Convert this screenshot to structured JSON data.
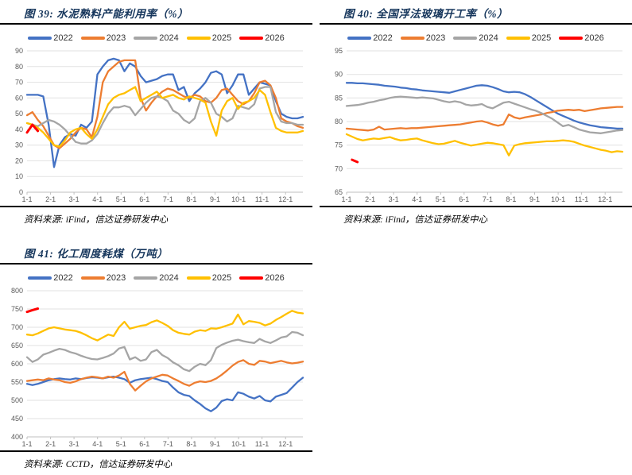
{
  "colors": {
    "title_text": "#16365C",
    "rule": "#000000",
    "grid": "#E2E2E2",
    "axis": "#BFBFBF",
    "axis_text": "#595959",
    "series_2022": "#4472C4",
    "series_2023": "#ED7D31",
    "series_2024": "#A5A5A5",
    "series_2025": "#FFC000",
    "series_2026": "#FF0000"
  },
  "figures": [
    {
      "title": "图 39: 水泥熟料产能利用率（%）",
      "source": "资料来源: iFind，信达证券研发中心"
    },
    {
      "title": "图 40: 全国浮法玻璃开工率（%）",
      "source": "资料来源: iFind，信达证券研发中心"
    },
    {
      "title": "图 41: 化工周度耗煤（万吨）",
      "source": "资料来源: CCTD，信达证券研发中心"
    }
  ],
  "chart_data": [
    {
      "type": "line",
      "title": "水泥熟料产能利用率（%）",
      "x_tick_labels": [
        "1-1",
        "2-1",
        "3-1",
        "4-1",
        "5-1",
        "6-1",
        "7-1",
        "8-1",
        "9-1",
        "10-1",
        "11-1",
        "12-1"
      ],
      "x_unit": "week of year (month-day)",
      "ylim": [
        0,
        90
      ],
      "ytick_step": 10,
      "grid": true,
      "legend_position": "top",
      "series": [
        {
          "name": "2022",
          "color": "#4472C4",
          "values": [
            62,
            62,
            62,
            61,
            43,
            16,
            30,
            35,
            37,
            36,
            43,
            41,
            45,
            75,
            80,
            84,
            85,
            84,
            77,
            82,
            80,
            74,
            70,
            71,
            72,
            74,
            75,
            75,
            65,
            67,
            58,
            63,
            66,
            70,
            76,
            77,
            75,
            63,
            68,
            75,
            75,
            62,
            66,
            70,
            69,
            68,
            58,
            50,
            48,
            47,
            47,
            48
          ]
        },
        {
          "name": "2023",
          "color": "#ED7D31",
          "values": [
            49,
            51,
            46,
            42,
            36,
            30,
            28,
            31,
            34,
            38,
            41,
            40,
            35,
            48,
            70,
            77,
            80,
            83,
            84,
            84,
            84,
            60,
            52,
            57,
            61,
            64,
            66,
            65,
            63,
            61,
            60,
            62,
            61,
            58,
            57,
            60,
            65,
            66,
            62,
            58,
            56,
            58,
            63,
            70,
            71,
            68,
            60,
            47,
            45,
            44,
            42,
            41
          ]
        },
        {
          "name": "2024",
          "color": "#A5A5A5",
          "values": [
            44,
            43,
            42,
            44,
            46,
            45,
            43,
            40,
            36,
            32,
            31,
            31,
            33,
            37,
            44,
            50,
            54,
            54,
            55,
            54,
            49,
            53,
            57,
            60,
            61,
            60,
            58,
            52,
            50,
            46,
            44,
            47,
            58,
            60,
            57,
            50,
            48,
            45,
            47,
            55,
            54,
            53,
            56,
            66,
            67,
            67,
            51,
            45,
            44,
            44,
            43,
            43
          ]
        },
        {
          "name": "2025",
          "color": "#FFC000",
          "values": [
            44,
            43,
            41,
            38,
            34,
            30,
            29,
            33,
            38,
            40,
            41,
            37,
            34,
            40,
            48,
            56,
            60,
            62,
            63,
            65,
            67,
            58,
            60,
            62,
            64,
            60,
            61,
            62,
            60,
            59,
            61,
            60,
            59,
            57,
            45,
            36,
            52,
            58,
            60,
            53,
            57,
            58,
            60,
            65,
            62,
            51,
            41,
            39,
            38,
            38,
            38,
            39
          ]
        },
        {
          "name": "2026",
          "color": "#FF0000",
          "values": [
            38,
            43,
            39,
            null,
            null,
            null,
            null,
            null,
            null,
            null,
            null,
            null,
            null,
            null,
            null,
            null,
            null,
            null,
            null,
            null,
            null,
            null,
            null,
            null,
            null,
            null,
            null,
            null,
            null,
            null,
            null,
            null,
            null,
            null,
            null,
            null,
            null,
            null,
            null,
            null,
            null,
            null,
            null,
            null,
            null,
            null,
            null,
            null,
            null,
            null,
            null,
            null
          ]
        }
      ]
    },
    {
      "type": "line",
      "title": "全国浮法玻璃开工率（%）",
      "x_tick_labels": [
        "1-1",
        "2-1",
        "3-1",
        "4-1",
        "5-1",
        "6-1",
        "7-1",
        "8-1",
        "9-1",
        "10-1",
        "11-1",
        "12-1"
      ],
      "x_unit": "week of year (month-day)",
      "ylim": [
        65,
        95
      ],
      "ytick_step": 5,
      "grid": true,
      "legend_position": "top",
      "series": [
        {
          "name": "2022",
          "color": "#4472C4",
          "values": [
            88.2,
            88.2,
            88.1,
            88.1,
            88.0,
            87.9,
            87.8,
            87.6,
            87.5,
            87.4,
            87.2,
            87.1,
            86.9,
            86.8,
            86.6,
            86.5,
            86.4,
            86.3,
            86.2,
            86.1,
            86.4,
            86.7,
            87.0,
            87.3,
            87.6,
            87.7,
            87.6,
            87.3,
            86.9,
            86.4,
            86.2,
            86.3,
            86.2,
            85.8,
            85.2,
            84.5,
            83.8,
            83.1,
            82.4,
            81.7,
            81.2,
            80.7,
            80.2,
            79.8,
            79.5,
            79.2,
            79.0,
            78.8,
            78.7,
            78.6,
            78.5,
            78.5
          ]
        },
        {
          "name": "2023",
          "color": "#ED7D31",
          "values": [
            78.5,
            78.4,
            78.3,
            78.2,
            78.1,
            78.3,
            78.9,
            78.3,
            78.4,
            78.5,
            78.6,
            78.5,
            78.6,
            78.6,
            78.7,
            78.8,
            78.9,
            79.0,
            79.1,
            79.2,
            79.3,
            79.4,
            79.6,
            79.8,
            80.0,
            80.1,
            79.8,
            79.4,
            79.1,
            79.4,
            81.5,
            80.9,
            80.6,
            80.9,
            81.1,
            81.3,
            81.5,
            81.8,
            82.0,
            82.3,
            82.4,
            82.5,
            82.4,
            82.5,
            82.2,
            82.4,
            82.6,
            82.8,
            82.9,
            83.0,
            83.1,
            83.1
          ]
        },
        {
          "name": "2024",
          "color": "#A5A5A5",
          "values": [
            83.3,
            83.4,
            83.5,
            83.7,
            84.0,
            84.2,
            84.5,
            84.7,
            85.0,
            85.2,
            85.3,
            85.2,
            85.1,
            85.0,
            85.1,
            85.0,
            84.9,
            84.6,
            84.3,
            84.1,
            84.3,
            84.1,
            83.6,
            83.4,
            83.5,
            83.7,
            83.1,
            82.8,
            83.4,
            84.0,
            84.2,
            83.8,
            83.4,
            83.0,
            82.6,
            82.3,
            81.8,
            81.2,
            80.6,
            79.8,
            79.0,
            79.3,
            78.8,
            78.3,
            78.0,
            77.7,
            77.6,
            77.5,
            77.7,
            77.9,
            78.1,
            78.2
          ]
        },
        {
          "name": "2025",
          "color": "#FFC000",
          "values": [
            77.3,
            76.8,
            76.3,
            76.0,
            76.2,
            76.4,
            76.3,
            76.5,
            76.7,
            76.3,
            76.0,
            76.1,
            76.3,
            76.4,
            76.0,
            75.7,
            75.4,
            75.2,
            75.3,
            75.6,
            75.9,
            75.5,
            75.2,
            74.9,
            75.1,
            75.3,
            75.5,
            75.4,
            75.2,
            75.0,
            72.8,
            74.9,
            75.2,
            75.4,
            75.5,
            75.6,
            75.7,
            75.8,
            75.8,
            75.9,
            76.0,
            75.9,
            75.7,
            75.3,
            74.9,
            74.6,
            74.3,
            74.0,
            73.8,
            73.5,
            73.7,
            73.6
          ]
        },
        {
          "name": "2026",
          "color": "#FF0000",
          "values": [
            null,
            71.9,
            71.4,
            null,
            null,
            null,
            null,
            null,
            null,
            null,
            null,
            null,
            null,
            null,
            null,
            null,
            null,
            null,
            null,
            null,
            null,
            null,
            null,
            null,
            null,
            null,
            null,
            null,
            null,
            null,
            null,
            null,
            null,
            null,
            null,
            null,
            null,
            null,
            null,
            null,
            null,
            null,
            null,
            null,
            null,
            null,
            null,
            null,
            null,
            null,
            null,
            null
          ]
        }
      ]
    },
    {
      "type": "line",
      "title": "化工周度耗煤（万吨）",
      "x_tick_labels": [
        "1-1",
        "2-1",
        "3-1",
        "4-1",
        "5-1",
        "6-1",
        "7-1",
        "8-1",
        "9-1",
        "10-1",
        "11-1",
        "12-1"
      ],
      "x_unit": "week of year (month-day)",
      "ylim": [
        400,
        800
      ],
      "ytick_step": 50,
      "grid": true,
      "legend_position": "top",
      "series": [
        {
          "name": "2022",
          "color": "#4472C4",
          "values": [
            545,
            542,
            545,
            550,
            555,
            558,
            560,
            558,
            557,
            560,
            558,
            561,
            563,
            562,
            560,
            563,
            565,
            562,
            558,
            548,
            555,
            558,
            560,
            562,
            558,
            553,
            550,
            535,
            522,
            515,
            512,
            500,
            490,
            478,
            470,
            480,
            498,
            503,
            500,
            522,
            518,
            510,
            505,
            512,
            500,
            497,
            510,
            515,
            520,
            535,
            550,
            562
          ]
        },
        {
          "name": "2023",
          "color": "#ED7D31",
          "values": [
            553,
            555,
            557,
            555,
            560,
            557,
            555,
            550,
            548,
            552,
            558,
            562,
            565,
            563,
            560,
            565,
            562,
            568,
            578,
            545,
            527,
            540,
            552,
            560,
            565,
            570,
            568,
            560,
            553,
            545,
            540,
            548,
            552,
            550,
            553,
            560,
            570,
            582,
            595,
            605,
            610,
            600,
            597,
            608,
            606,
            602,
            605,
            608,
            604,
            601,
            603,
            606
          ]
        },
        {
          "name": "2024",
          "color": "#A5A5A5",
          "values": [
            618,
            605,
            612,
            625,
            630,
            636,
            641,
            638,
            632,
            628,
            622,
            617,
            613,
            612,
            616,
            621,
            628,
            642,
            646,
            612,
            618,
            608,
            612,
            632,
            638,
            624,
            616,
            604,
            596,
            585,
            580,
            592,
            600,
            596,
            610,
            643,
            652,
            658,
            663,
            666,
            662,
            659,
            657,
            668,
            661,
            657,
            664,
            672,
            675,
            687,
            685,
            678
          ]
        },
        {
          "name": "2025",
          "color": "#FFC000",
          "values": [
            680,
            678,
            683,
            690,
            697,
            700,
            697,
            694,
            692,
            690,
            685,
            678,
            670,
            664,
            672,
            680,
            676,
            700,
            715,
            696,
            700,
            704,
            706,
            714,
            719,
            712,
            704,
            692,
            685,
            682,
            680,
            688,
            692,
            690,
            697,
            696,
            700,
            705,
            710,
            735,
            708,
            717,
            715,
            712,
            705,
            710,
            720,
            728,
            737,
            745,
            740,
            738
          ]
        },
        {
          "name": "2026",
          "color": "#FF0000",
          "values": [
            742,
            747,
            751,
            null,
            null,
            null,
            null,
            null,
            null,
            null,
            null,
            null,
            null,
            null,
            null,
            null,
            null,
            null,
            null,
            null,
            null,
            null,
            null,
            null,
            null,
            null,
            null,
            null,
            null,
            null,
            null,
            null,
            null,
            null,
            null,
            null,
            null,
            null,
            null,
            null,
            null,
            null,
            null,
            null,
            null,
            null,
            null,
            null,
            null,
            null,
            null,
            null
          ]
        }
      ]
    }
  ]
}
